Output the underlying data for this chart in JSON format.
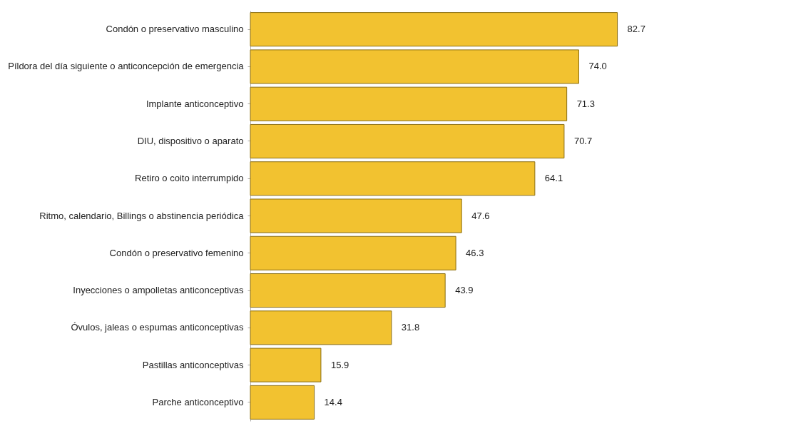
{
  "chart_data": {
    "type": "bar",
    "orientation": "horizontal",
    "categories": [
      "Condón o preservativo masculino",
      "Píldora del día siguiente o anticoncepción de emergencia",
      "Implante anticonceptivo",
      "DIU, dispositivo o aparato",
      "Retiro o coito interrumpido",
      "Ritmo, calendario, Billings o abstinencia periódica",
      "Condón o preservativo femenino",
      "Inyecciones o ampolletas anticonceptivas",
      "Óvulos, jaleas o espumas anticonceptivas",
      "Pastillas anticonceptivas",
      "Parche anticonceptivo"
    ],
    "series": [
      {
        "color": "#f2c230",
        "values": [
          82.7,
          74.0,
          71.3,
          70.7,
          64.1,
          47.6,
          46.3,
          43.9,
          31.8,
          15.9,
          14.4
        ],
        "value_labels": [
          "82.7",
          "74.0",
          "71.3",
          "70.7",
          "64.1",
          "47.6",
          "46.3",
          "43.9",
          "31.8",
          "15.9",
          "14.4"
        ]
      }
    ]
  }
}
